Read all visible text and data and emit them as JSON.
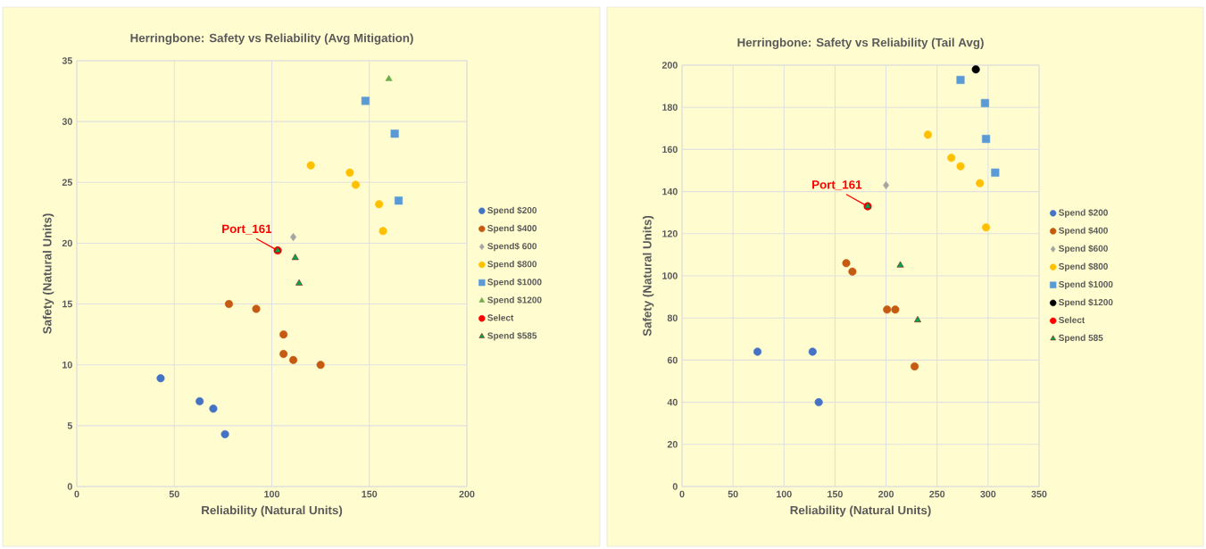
{
  "chart_data": [
    {
      "type": "scatter",
      "title": "Herringbone: Safety vs Reliability (Avg Mitigation)",
      "xlabel": "Reliability (Natural Units)",
      "ylabel": "Safety (Natural Units)",
      "xlim": [
        0,
        200
      ],
      "ylim": [
        0,
        35
      ],
      "xticks": [
        0,
        50,
        100,
        150,
        200
      ],
      "yticks": [
        0,
        5,
        10,
        15,
        20,
        25,
        30,
        35
      ],
      "grid": true,
      "legend": "right",
      "annotations": [
        {
          "text": "Port_161",
          "x": 103,
          "y": 19.4
        }
      ],
      "series": [
        {
          "name": "Spend $200",
          "color": "#4472c4",
          "marker": "circle",
          "x": [
            43,
            63,
            70,
            76
          ],
          "values": [
            8.9,
            7.0,
            6.4,
            4.3
          ]
        },
        {
          "name": "Spend $400",
          "color": "#c55a11",
          "marker": "circle",
          "x": [
            78,
            92,
            106,
            106,
            111,
            125
          ],
          "values": [
            15.0,
            14.6,
            12.5,
            10.9,
            10.4,
            10.0
          ]
        },
        {
          "name": "Spend$ 600",
          "color": "#a5a5a5",
          "marker": "diamond",
          "x": [
            111
          ],
          "values": [
            20.5
          ]
        },
        {
          "name": "Spend $800",
          "color": "#ffc000",
          "marker": "circle",
          "x": [
            120,
            140,
            143,
            155,
            157
          ],
          "values": [
            26.4,
            25.8,
            24.8,
            23.2,
            21.0
          ]
        },
        {
          "name": "Spend $1000",
          "color": "#5b9bd5",
          "marker": "square",
          "x": [
            148,
            163,
            165
          ],
          "values": [
            31.7,
            29.0,
            23.5
          ]
        },
        {
          "name": "Spend $1200",
          "color": "#70ad47",
          "marker": "triangle",
          "x": [
            160
          ],
          "values": [
            33.5
          ]
        },
        {
          "name": "Select",
          "color": "#ff0000",
          "marker": "circle",
          "x": [
            103
          ],
          "values": [
            19.4
          ]
        },
        {
          "name": "Spend $585",
          "color": "#00a651",
          "marker": "triangle",
          "x": [
            103,
            112,
            114
          ],
          "values": [
            19.4,
            18.8,
            16.7
          ]
        }
      ]
    },
    {
      "type": "scatter",
      "title": "Herringbone: Safety vs Reliability (Tail Avg)",
      "xlabel": "Reliability (Natural Units)",
      "ylabel": "Safety (Natural Units)",
      "xlim": [
        0,
        350
      ],
      "ylim": [
        0,
        200
      ],
      "xticks": [
        0,
        50,
        100,
        150,
        200,
        250,
        300,
        350
      ],
      "yticks": [
        0,
        20,
        40,
        60,
        80,
        100,
        120,
        140,
        160,
        180,
        200
      ],
      "grid": true,
      "legend": "right",
      "annotations": [
        {
          "text": "Port_161",
          "x": 182,
          "y": 133
        }
      ],
      "series": [
        {
          "name": "Spend $200",
          "color": "#4472c4",
          "marker": "circle",
          "x": [
            74,
            128,
            134
          ],
          "values": [
            64,
            64,
            40
          ]
        },
        {
          "name": "Spend $400",
          "color": "#c55a11",
          "marker": "circle",
          "x": [
            161,
            167,
            201,
            209,
            228
          ],
          "values": [
            106,
            102,
            84,
            84,
            57
          ]
        },
        {
          "name": "Spend $600",
          "color": "#a5a5a5",
          "marker": "diamond",
          "x": [
            200
          ],
          "values": [
            143
          ]
        },
        {
          "name": "Spend $800",
          "color": "#ffc000",
          "marker": "circle",
          "x": [
            241,
            264,
            273,
            292,
            298
          ],
          "values": [
            167,
            156,
            152,
            144,
            123
          ]
        },
        {
          "name": "Spend $1000",
          "color": "#5b9bd5",
          "marker": "square",
          "x": [
            273,
            297,
            298,
            307
          ],
          "values": [
            193,
            182,
            165,
            149
          ]
        },
        {
          "name": "Spend $1200",
          "color": "#000000",
          "marker": "circle",
          "x": [
            288
          ],
          "values": [
            198
          ]
        },
        {
          "name": "Select",
          "color": "#ff0000",
          "marker": "circle",
          "x": [
            182
          ],
          "values": [
            133
          ]
        },
        {
          "name": "Spend 585",
          "color": "#00a651",
          "marker": "triangle",
          "x": [
            182,
            214,
            231
          ],
          "values": [
            133,
            105,
            79
          ]
        }
      ]
    }
  ]
}
